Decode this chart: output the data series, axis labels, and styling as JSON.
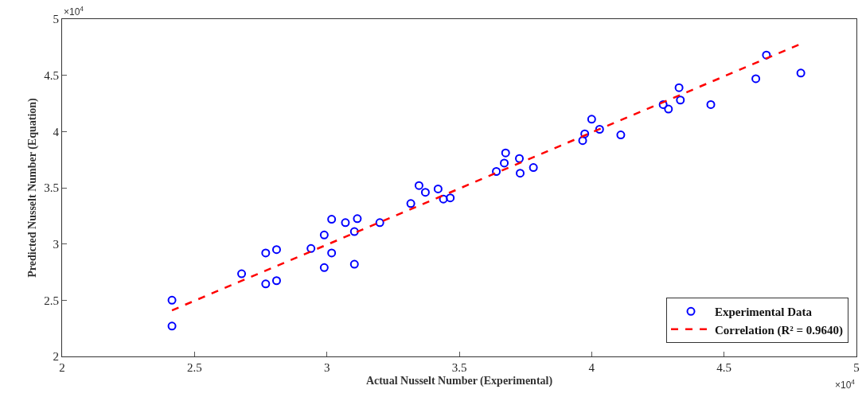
{
  "chart_data": {
    "type": "scatter",
    "xlabel": "Actual Nusselt Number (Experimental)",
    "ylabel": "Predicted Nusselt Number (Equation)",
    "annotations": [
      "×10$^{4}$",
      "×10$^{4}$"
    ],
    "xlim": [
      2,
      5
    ],
    "ylim": [
      2,
      5
    ],
    "xticks": [
      2,
      2.5,
      3,
      3.5,
      4,
      4.5,
      5
    ],
    "yticks": [
      2,
      2.5,
      3,
      3.5,
      4,
      4.5,
      5
    ],
    "legend": "bottom right",
    "series": [
      {
        "name": "Experimental Data",
        "marker": "circle",
        "color": "#0000ff",
        "x": [
          2.415,
          2.415,
          2.678,
          2.769,
          2.81,
          2.769,
          2.81,
          2.94,
          2.99,
          2.99,
          3.018,
          3.018,
          3.07,
          3.104,
          3.104,
          3.115,
          3.2,
          3.317,
          3.348,
          3.372,
          3.42,
          3.44,
          3.466,
          3.64,
          3.67,
          3.675,
          3.727,
          3.73,
          3.78,
          3.966,
          3.974,
          4.0,
          4.03,
          4.11,
          4.27,
          4.29,
          4.33,
          4.335,
          4.45,
          4.62,
          4.66,
          4.79
        ],
        "values": [
          2.5,
          2.27,
          2.735,
          2.645,
          2.674,
          2.92,
          2.95,
          2.96,
          2.79,
          3.08,
          2.92,
          3.22,
          3.19,
          3.11,
          2.82,
          3.225,
          3.19,
          3.36,
          3.52,
          3.46,
          3.49,
          3.4,
          3.41,
          3.645,
          3.72,
          3.81,
          3.76,
          3.63,
          3.68,
          3.92,
          3.98,
          4.11,
          4.02,
          3.97,
          4.24,
          4.2,
          4.39,
          4.28,
          4.24,
          4.47,
          4.68,
          4.52
        ]
      },
      {
        "name": "Correlation (R² = 0.9640)",
        "type": "line",
        "marker": "none",
        "line_style": "dashed",
        "color": "#ff0000",
        "x": [
          2.415,
          4.79
        ],
        "values": [
          2.41,
          4.78
        ]
      }
    ]
  }
}
